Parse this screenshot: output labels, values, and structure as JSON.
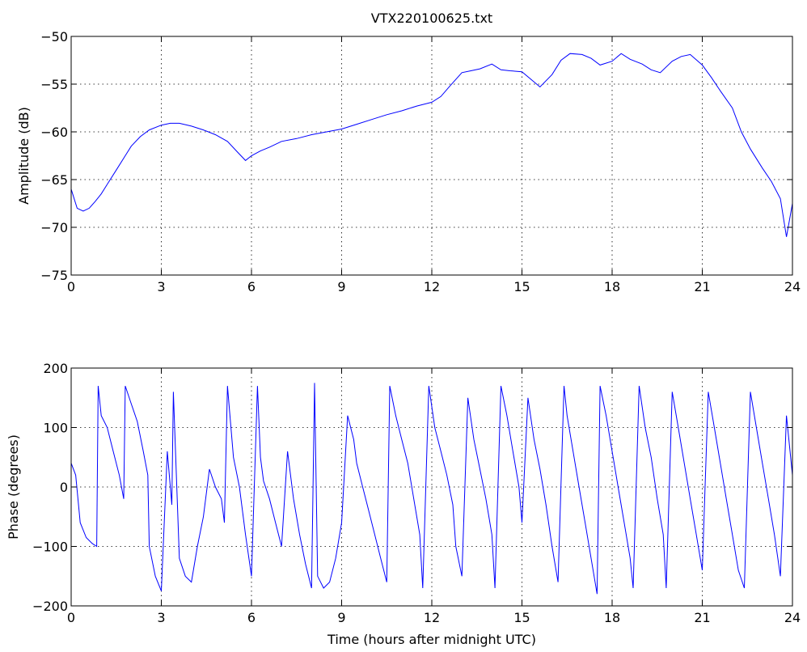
{
  "chart_data": [
    {
      "type": "line",
      "title": "VTX220100625.txt",
      "xlabel": "",
      "ylabel": "Amplitude (dB)",
      "xlim": [
        0,
        24
      ],
      "ylim": [
        -75,
        -50
      ],
      "xticks": [
        "0",
        "3",
        "6",
        "9",
        "12",
        "15",
        "18",
        "21",
        "24"
      ],
      "yticks": [
        "−75",
        "−70",
        "−65",
        "−60",
        "−55",
        "−50"
      ],
      "xtick_values": [
        0,
        3,
        6,
        9,
        12,
        15,
        18,
        21,
        24
      ],
      "ytick_values": [
        -75,
        -70,
        -65,
        -60,
        -55,
        -50
      ],
      "grid": true,
      "color": "#0000ff",
      "series": [
        {
          "x": [
            0,
            0.2,
            0.4,
            0.6,
            0.8,
            1.0,
            1.2,
            1.5,
            1.8,
            2.0,
            2.3,
            2.6,
            3.0,
            3.3,
            3.6,
            4.0,
            4.4,
            4.8,
            5.2,
            5.5,
            5.8,
            6.0,
            6.3,
            6.6,
            7.0,
            7.5,
            8.0,
            8.5,
            9.0,
            9.5,
            10.0,
            10.5,
            11.0,
            11.5,
            12.0,
            12.3,
            12.6,
            13.0,
            13.3,
            13.6,
            14.0,
            14.3,
            14.6,
            15.0,
            15.3,
            15.6,
            16.0,
            16.3,
            16.6,
            17.0,
            17.3,
            17.6,
            18.0,
            18.3,
            18.6,
            19.0,
            19.3,
            19.6,
            20.0,
            20.3,
            20.6,
            21.0,
            21.3,
            21.6,
            22.0,
            22.3,
            22.6,
            23.0,
            23.3,
            23.6,
            23.8,
            24.0
          ],
          "y": [
            -66,
            -68,
            -68.3,
            -68,
            -67.3,
            -66.5,
            -65.5,
            -64,
            -62.5,
            -61.5,
            -60.5,
            -59.8,
            -59.3,
            -59.1,
            -59.1,
            -59.4,
            -59.8,
            -60.3,
            -61,
            -62,
            -63,
            -62.5,
            -62,
            -61.6,
            -61,
            -60.7,
            -60.3,
            -60,
            -59.7,
            -59.2,
            -58.7,
            -58.2,
            -57.8,
            -57.3,
            -56.9,
            -56.3,
            -55.2,
            -53.8,
            -53.6,
            -53.4,
            -52.9,
            -53.5,
            -53.6,
            -53.7,
            -54.5,
            -55.3,
            -54,
            -52.5,
            -51.8,
            -51.9,
            -52.3,
            -53,
            -52.6,
            -51.8,
            -52.4,
            -52.9,
            -53.5,
            -53.8,
            -52.6,
            -52.1,
            -51.9,
            -53,
            -54.3,
            -55.7,
            -57.5,
            -60,
            -61.8,
            -63.8,
            -65.2,
            -67,
            -71,
            -67.5
          ]
        }
      ]
    },
    {
      "type": "line",
      "title": "",
      "xlabel": "Time (hours after midnight UTC)",
      "ylabel": "Phase (degrees)",
      "xlim": [
        0,
        24
      ],
      "ylim": [
        -200,
        200
      ],
      "xticks": [
        "0",
        "3",
        "6",
        "9",
        "12",
        "15",
        "18",
        "21",
        "24"
      ],
      "yticks": [
        "−200",
        "−100",
        "0",
        "100",
        "200"
      ],
      "xtick_values": [
        0,
        3,
        6,
        9,
        12,
        15,
        18,
        21,
        24
      ],
      "ytick_values": [
        -200,
        -100,
        0,
        100,
        200
      ],
      "grid": true,
      "color": "#0000ff",
      "series": [
        {
          "x": [
            0,
            0.15,
            0.3,
            0.5,
            0.7,
            0.85,
            0.9,
            1.0,
            1.2,
            1.4,
            1.6,
            1.75,
            1.8,
            2.0,
            2.2,
            2.4,
            2.55,
            2.6,
            2.8,
            3.0,
            3.2,
            3.35,
            3.4,
            3.6,
            3.8,
            4.0,
            4.2,
            4.4,
            4.6,
            4.8,
            5.0,
            5.1,
            5.2,
            5.4,
            5.6,
            5.8,
            6.0,
            6.2,
            6.3,
            6.4,
            6.6,
            6.8,
            7.0,
            7.2,
            7.4,
            7.6,
            7.8,
            8.0,
            8.1,
            8.2,
            8.4,
            8.6,
            8.8,
            9.0,
            9.2,
            9.4,
            9.5,
            9.7,
            9.9,
            10.1,
            10.3,
            10.5,
            10.6,
            10.8,
            11.0,
            11.2,
            11.4,
            11.6,
            11.7,
            11.9,
            12.1,
            12.3,
            12.5,
            12.7,
            12.8,
            13.0,
            13.2,
            13.4,
            13.6,
            13.8,
            14.0,
            14.1,
            14.3,
            14.5,
            14.7,
            14.9,
            15.0,
            15.2,
            15.4,
            15.6,
            15.8,
            16.0,
            16.2,
            16.4,
            16.5,
            16.7,
            16.9,
            17.1,
            17.3,
            17.5,
            17.6,
            17.8,
            18.0,
            18.2,
            18.4,
            18.6,
            18.7,
            18.9,
            19.1,
            19.3,
            19.5,
            19.7,
            19.8,
            20.0,
            20.2,
            20.4,
            20.6,
            20.8,
            21.0,
            21.2,
            21.4,
            21.6,
            21.8,
            22.0,
            22.2,
            22.4,
            22.6,
            22.8,
            23.0,
            23.2,
            23.4,
            23.6,
            23.8,
            24.0
          ],
          "y": [
            40,
            20,
            -60,
            -85,
            -95,
            -100,
            170,
            120,
            100,
            60,
            20,
            -20,
            170,
            140,
            110,
            60,
            20,
            -100,
            -150,
            -175,
            60,
            -30,
            160,
            -120,
            -150,
            -160,
            -100,
            -50,
            30,
            0,
            -20,
            -60,
            170,
            50,
            0,
            -80,
            -150,
            170,
            50,
            10,
            -20,
            -60,
            -100,
            60,
            -20,
            -80,
            -130,
            -170,
            175,
            -150,
            -170,
            -160,
            -120,
            -60,
            120,
            80,
            40,
            0,
            -40,
            -80,
            -120,
            -160,
            170,
            120,
            80,
            40,
            -20,
            -80,
            -170,
            170,
            100,
            60,
            20,
            -30,
            -100,
            -150,
            150,
            80,
            30,
            -20,
            -80,
            -170,
            170,
            120,
            60,
            0,
            -60,
            150,
            80,
            30,
            -30,
            -100,
            -160,
            170,
            120,
            60,
            0,
            -60,
            -120,
            -180,
            170,
            120,
            60,
            0,
            -60,
            -120,
            -170,
            170,
            100,
            50,
            -20,
            -80,
            -170,
            160,
            100,
            40,
            -20,
            -80,
            -140,
            160,
            100,
            40,
            -20,
            -80,
            -140,
            -170,
            160,
            100,
            40,
            -20,
            -80,
            -150,
            120,
            20
          ]
        }
      ]
    }
  ]
}
